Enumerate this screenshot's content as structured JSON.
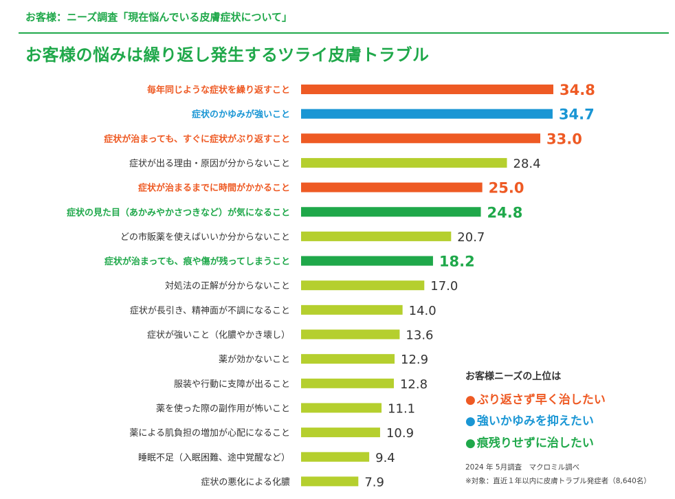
{
  "header": {
    "label": "お客様：ニーズ調査「現在悩んでいる皮膚症状について」",
    "title": "お客様の悩みは繰り返し発生するツライ皮膚トラブル"
  },
  "colors": {
    "orange": "#ee5a24",
    "blue": "#1a96d4",
    "green": "#1fa84a",
    "lime": "#b5cf2e",
    "gray_text": "#333333"
  },
  "chart_data": {
    "type": "bar",
    "orientation": "horizontal",
    "xlim": [
      0,
      35
    ],
    "categories": [
      "毎年同じような症状を繰り返すこと",
      "症状のかゆみが強いこと",
      "症状が治まっても、すぐに症状がぶり返すこと",
      "症状が出る理由・原因が分からないこと",
      "症状が治まるまでに時間がかかること",
      "症状の見た目（あかみやかさつきなど）が気になること",
      "どの市販薬を使えばいいか分からないこと",
      "症状が治まっても、痕や傷が残ってしまうこと",
      "対処法の正解が分からないこと",
      "症状が長引き、精神面が不調になること",
      "症状が強いこと（化膿やかき壊し）",
      "薬が効かないこと",
      "服装や行動に支障が出ること",
      "薬を使った際の副作用が怖いこと",
      "薬による肌負担の増加が心配になること",
      "睡眠不足（入眠困難、途中覚醒など）",
      "症状の悪化による化膿"
    ],
    "values": [
      34.8,
      34.7,
      33.0,
      28.4,
      25.0,
      24.8,
      20.7,
      18.2,
      17.0,
      14.0,
      13.6,
      12.9,
      12.8,
      11.1,
      10.9,
      9.4,
      7.9
    ],
    "value_labels": [
      "34.8",
      "34.7",
      "33.0",
      "28.4",
      "25.0",
      "24.8",
      "20.7",
      "18.2",
      "17.0",
      "14.0",
      "13.6",
      "12.9",
      "12.8",
      "11.1",
      "10.9",
      "9.4",
      "7.9"
    ],
    "highlight": [
      "orange",
      "blue",
      "orange",
      "lime",
      "orange",
      "green",
      "lime",
      "green",
      "lime",
      "lime",
      "lime",
      "lime",
      "lime",
      "lime",
      "lime",
      "lime",
      "lime"
    ]
  },
  "legend": {
    "heading": "お客様ニーズの上位は",
    "items": [
      {
        "text": "ぶり返さず早く治したい",
        "color": "orange"
      },
      {
        "text": "強いかゆみを抑えたい",
        "color": "blue"
      },
      {
        "text": "痕残りせずに治したい",
        "color": "green"
      }
    ],
    "dot": "●"
  },
  "footnotes": [
    "2024 年 5月調査　マクロミル調べ",
    "※対象：直近１年以内に皮膚トラブル発症者（8,640名）"
  ]
}
